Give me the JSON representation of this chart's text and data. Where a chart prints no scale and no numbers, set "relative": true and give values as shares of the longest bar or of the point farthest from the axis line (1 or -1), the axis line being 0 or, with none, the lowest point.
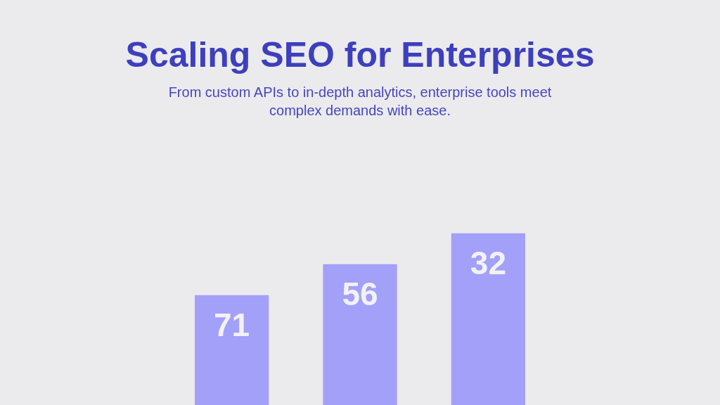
{
  "chart_data": {
    "type": "bar",
    "title": "Scaling SEO for Enterprises",
    "subtitle": "From custom APIs to in-depth analytics, enterprise tools meet complex demands with ease.",
    "categories": [
      null,
      null,
      null
    ],
    "values": [
      0.64,
      0.82,
      1
    ],
    "annotations": [
      "71",
      "56",
      "32"
    ],
    "color": "#a3a0f9",
    "relative": true,
    "tick_labels": false
  }
}
